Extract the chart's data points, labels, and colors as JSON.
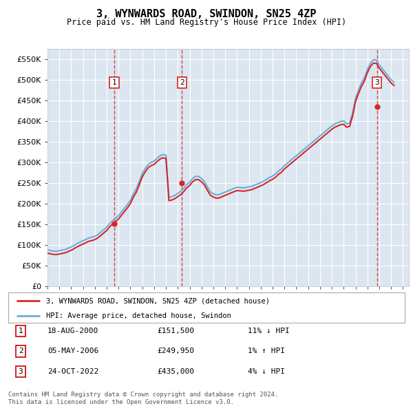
{
  "title": "3, WYNWARDS ROAD, SWINDON, SN25 4ZP",
  "subtitle": "Price paid vs. HM Land Registry's House Price Index (HPI)",
  "ylim": [
    0,
    575000
  ],
  "yticks": [
    0,
    50000,
    100000,
    150000,
    200000,
    250000,
    300000,
    350000,
    400000,
    450000,
    500000,
    550000
  ],
  "background_color": "#ffffff",
  "plot_bg_color": "#dce6f1",
  "grid_color": "#ffffff",
  "hpi_color": "#6baed6",
  "price_color": "#d62728",
  "vline_color": "#d62728",
  "purchases": [
    {
      "date_num": 2000.63,
      "price": 151500,
      "label": "1"
    },
    {
      "date_num": 2006.35,
      "price": 249950,
      "label": "2"
    },
    {
      "date_num": 2022.81,
      "price": 435000,
      "label": "3"
    }
  ],
  "legend_entries": [
    "3, WYNWARDS ROAD, SWINDON, SN25 4ZP (detached house)",
    "HPI: Average price, detached house, Swindon"
  ],
  "table_rows": [
    {
      "num": "1",
      "date": "18-AUG-2000",
      "price": "£151,500",
      "pct": "11% ↓ HPI"
    },
    {
      "num": "2",
      "date": "05-MAY-2006",
      "price": "£249,950",
      "pct": "1% ↑ HPI"
    },
    {
      "num": "3",
      "date": "24-OCT-2022",
      "price": "£435,000",
      "pct": "4% ↓ HPI"
    }
  ],
  "footer": "Contains HM Land Registry data © Crown copyright and database right 2024.\nThis data is licensed under the Open Government Licence v3.0.",
  "years": [
    1995.0,
    1995.25,
    1995.5,
    1995.75,
    1996.0,
    1996.25,
    1996.5,
    1996.75,
    1997.0,
    1997.25,
    1997.5,
    1997.75,
    1998.0,
    1998.25,
    1998.5,
    1998.75,
    1999.0,
    1999.25,
    1999.5,
    1999.75,
    2000.0,
    2000.25,
    2000.5,
    2000.75,
    2001.0,
    2001.25,
    2001.5,
    2001.75,
    2002.0,
    2002.25,
    2002.5,
    2002.75,
    2003.0,
    2003.25,
    2003.5,
    2003.75,
    2004.0,
    2004.25,
    2004.5,
    2004.75,
    2005.0,
    2005.25,
    2005.5,
    2005.75,
    2006.0,
    2006.25,
    2006.5,
    2006.75,
    2007.0,
    2007.25,
    2007.5,
    2007.75,
    2008.0,
    2008.25,
    2008.5,
    2008.75,
    2009.0,
    2009.25,
    2009.5,
    2009.75,
    2010.0,
    2010.25,
    2010.5,
    2010.75,
    2011.0,
    2011.25,
    2011.5,
    2011.75,
    2012.0,
    2012.25,
    2012.5,
    2012.75,
    2013.0,
    2013.25,
    2013.5,
    2013.75,
    2014.0,
    2014.25,
    2014.5,
    2014.75,
    2015.0,
    2015.25,
    2015.5,
    2015.75,
    2016.0,
    2016.25,
    2016.5,
    2016.75,
    2017.0,
    2017.25,
    2017.5,
    2017.75,
    2018.0,
    2018.25,
    2018.5,
    2018.75,
    2019.0,
    2019.25,
    2019.5,
    2019.75,
    2020.0,
    2020.25,
    2020.5,
    2020.75,
    2021.0,
    2021.25,
    2021.5,
    2021.75,
    2022.0,
    2022.25,
    2022.5,
    2022.75,
    2023.0,
    2023.25,
    2023.5,
    2023.75,
    2024.0,
    2024.25
  ],
  "hpi_values": [
    88000,
    86500,
    85000,
    84800,
    86000,
    87500,
    89000,
    92000,
    95000,
    99000,
    103500,
    107000,
    110000,
    113500,
    117000,
    118500,
    121000,
    125000,
    131000,
    137000,
    143000,
    152000,
    159000,
    165000,
    171000,
    180000,
    189000,
    198000,
    208000,
    224000,
    236000,
    254000,
    273000,
    285000,
    295000,
    300000,
    303000,
    310000,
    316000,
    319000,
    317000,
    215000,
    217000,
    220000,
    225000,
    230000,
    237000,
    246000,
    252000,
    261000,
    266000,
    266000,
    261000,
    253000,
    240000,
    228000,
    224000,
    221000,
    222000,
    225000,
    228000,
    231000,
    234000,
    237000,
    239500,
    239000,
    238000,
    239000,
    240500,
    242000,
    245000,
    248000,
    251000,
    254500,
    259000,
    263500,
    267000,
    272000,
    279000,
    284000,
    292000,
    298000,
    304000,
    310000,
    316000,
    322000,
    328000,
    334000,
    340000,
    346000,
    352000,
    358000,
    364000,
    370000,
    376000,
    382000,
    388000,
    393000,
    396000,
    399000,
    400000,
    393000,
    395000,
    420000,
    455000,
    475000,
    492000,
    505000,
    525000,
    540000,
    548000,
    548000,
    536000,
    527000,
    518000,
    509000,
    500000,
    494000
  ],
  "price_values": [
    80000,
    78500,
    77000,
    76800,
    78000,
    79500,
    81000,
    84000,
    87000,
    91000,
    95500,
    99000,
    102000,
    105500,
    109000,
    110500,
    113000,
    117000,
    123000,
    129000,
    135000,
    144000,
    151000,
    157000,
    163000,
    172000,
    181000,
    190000,
    200000,
    216000,
    228000,
    246000,
    265000,
    277000,
    287000,
    292000,
    295000,
    302000,
    308000,
    311000,
    309000,
    207000,
    209000,
    212000,
    217000,
    222000,
    229000,
    238000,
    244000,
    253000,
    258000,
    258000,
    253000,
    245000,
    232000,
    220000,
    216000,
    213000,
    214000,
    217000,
    220000,
    223000,
    226000,
    229000,
    231500,
    231000,
    230000,
    231000,
    232500,
    234000,
    237000,
    240000,
    243000,
    246500,
    251000,
    255500,
    259000,
    264000,
    271000,
    276000,
    284000,
    290000,
    296000,
    302000,
    308000,
    314000,
    320000,
    326000,
    332000,
    338000,
    344000,
    350000,
    356000,
    362000,
    368000,
    374000,
    380000,
    385000,
    388000,
    391000,
    392000,
    385000,
    387000,
    412000,
    447000,
    467000,
    484000,
    497000,
    517000,
    532000,
    540000,
    540000,
    528000,
    519000,
    510000,
    501000,
    492000,
    486000
  ]
}
